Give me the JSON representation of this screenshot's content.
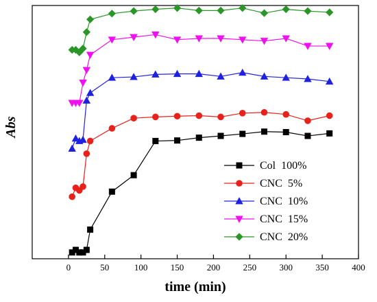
{
  "chart_data": {
    "type": "line",
    "xlabel": "time (min)",
    "ylabel": "Abs",
    "xlim": [
      -50,
      400
    ],
    "ylim": [
      0,
      100
    ],
    "xticks": [
      0,
      50,
      100,
      150,
      200,
      250,
      300,
      350,
      400
    ],
    "yticks_shown": false,
    "legend_position": "bottom-right",
    "series": [
      {
        "name": "Col  100%",
        "color": "#000000",
        "marker": "square",
        "x": [
          5,
          10,
          15,
          20,
          25,
          30,
          60,
          90,
          120,
          150,
          180,
          210,
          240,
          270,
          300,
          330,
          360
        ],
        "y": [
          2.5,
          3.5,
          2.5,
          2.5,
          3.5,
          11.5,
          26.5,
          33.0,
          46.5,
          46.7,
          47.8,
          48.5,
          49.3,
          50.2,
          50.0,
          48.5,
          49.5
        ]
      },
      {
        "name": "CNC  5%",
        "color": "#e8211b",
        "marker": "circle",
        "x": [
          5,
          10,
          15,
          20,
          25,
          30,
          60,
          90,
          120,
          150,
          180,
          210,
          240,
          270,
          300,
          330,
          360
        ],
        "y": [
          24.5,
          28.0,
          27.0,
          28.5,
          41.5,
          46.5,
          51.5,
          55.5,
          56.0,
          56.3,
          56.5,
          56.0,
          57.5,
          57.8,
          57.0,
          54.5,
          56.5
        ]
      },
      {
        "name": "CNC  10%",
        "color": "#1e22e0",
        "marker": "triangle-up",
        "x": [
          5,
          10,
          15,
          20,
          25,
          30,
          60,
          90,
          120,
          150,
          180,
          210,
          240,
          270,
          300,
          330,
          360
        ],
        "y": [
          43.5,
          47.5,
          46.5,
          47.0,
          62.5,
          65.5,
          71.5,
          71.8,
          72.8,
          73.0,
          73.0,
          72.0,
          73.5,
          72.0,
          71.5,
          71.0,
          70.0
        ]
      },
      {
        "name": "CNC  15%",
        "color": "#ee10ee",
        "marker": "triangle-down",
        "x": [
          5,
          10,
          15,
          20,
          25,
          30,
          60,
          90,
          120,
          150,
          180,
          210,
          240,
          270,
          300,
          330,
          360
        ],
        "y": [
          61.5,
          61.5,
          61.5,
          69.5,
          74.5,
          80.5,
          86.5,
          87.5,
          88.5,
          86.5,
          87.0,
          87.0,
          86.5,
          86.0,
          87.0,
          84.0,
          84.0
        ]
      },
      {
        "name": "CNC  20%",
        "color": "#2a9628",
        "marker": "diamond",
        "x": [
          5,
          10,
          15,
          20,
          25,
          30,
          60,
          90,
          120,
          150,
          180,
          210,
          240,
          270,
          300,
          330,
          360
        ],
        "y": [
          82.5,
          82.5,
          81.5,
          83.0,
          89.5,
          94.5,
          96.8,
          97.8,
          98.5,
          99.0,
          98.0,
          98.0,
          99.0,
          97.0,
          98.5,
          97.8,
          97.3
        ]
      }
    ]
  }
}
